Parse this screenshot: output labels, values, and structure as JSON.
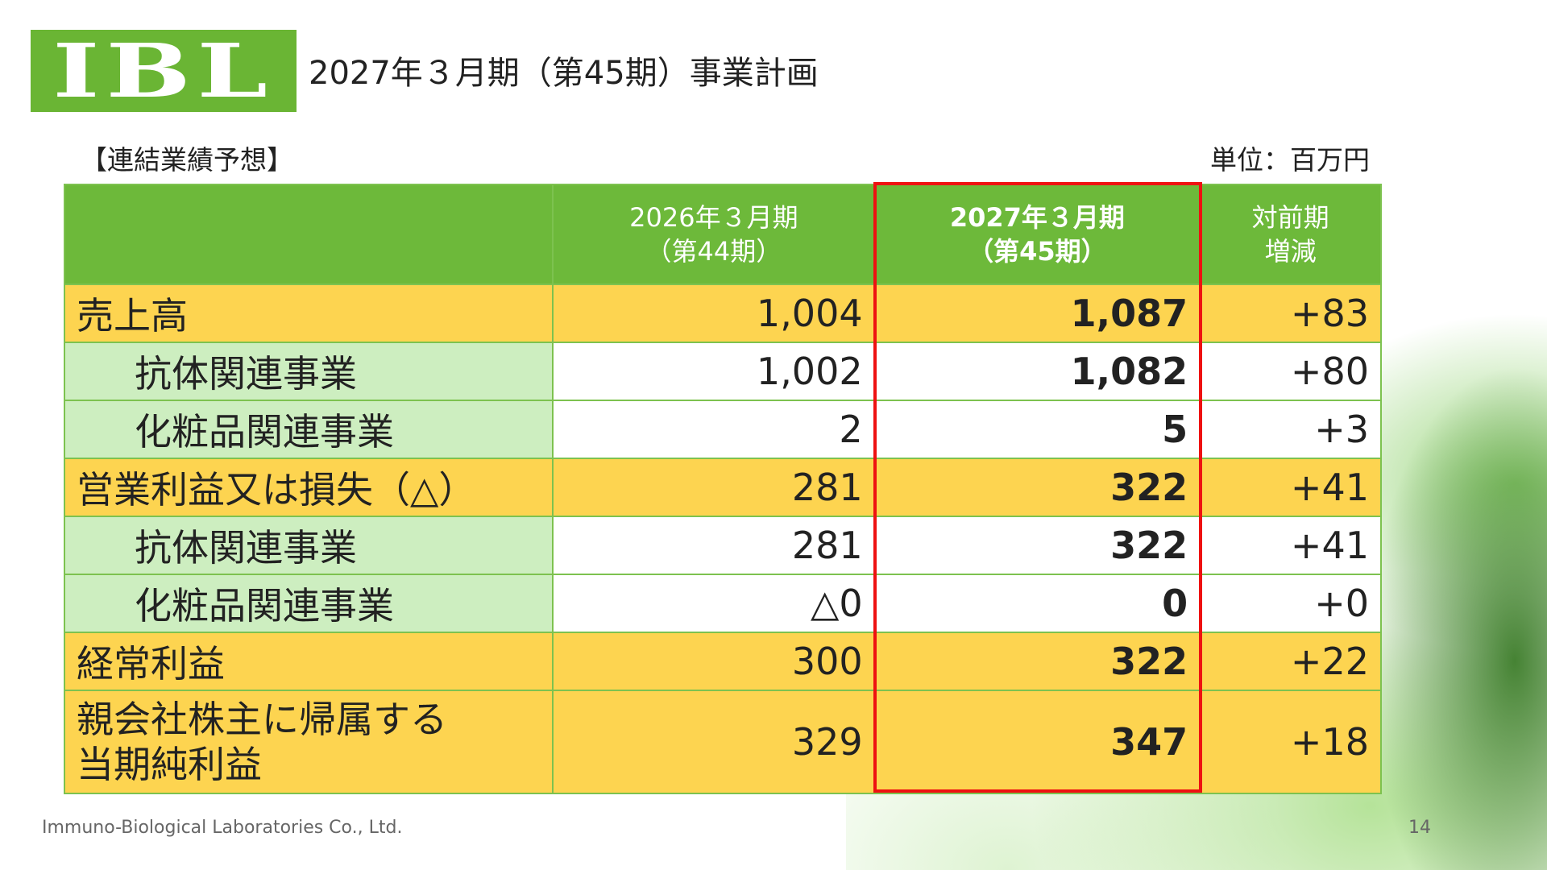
{
  "logo": {
    "text": "IBL",
    "color": "#6ab534"
  },
  "header": {
    "title": "2027年３月期（第45期）事業計画"
  },
  "section": {
    "label": "【連結業績予想】",
    "unit": "単位：百万円"
  },
  "table": {
    "columns": {
      "prev_line1": "2026年３月期",
      "prev_line2": "（第44期）",
      "cur_line1": "2027年３月期",
      "cur_line2": "（第45期）",
      "diff_line1": "対前期",
      "diff_line2": "増減"
    },
    "rows": [
      {
        "label": "売上高",
        "prev": "1,004",
        "cur": "1,087",
        "diff": "+83"
      },
      {
        "label": "抗体関連事業",
        "prev": "1,002",
        "cur": "1,082",
        "diff": "+80"
      },
      {
        "label": "化粧品関連事業",
        "prev": "2",
        "cur": "5",
        "diff": "+3"
      },
      {
        "label": "営業利益又は損失（△）",
        "prev": "281",
        "cur": "322",
        "diff": "+41"
      },
      {
        "label": "抗体関連事業",
        "prev": "281",
        "cur": "322",
        "diff": "+41"
      },
      {
        "label": "化粧品関連事業",
        "prev": "△0",
        "cur": "0",
        "diff": "+0"
      },
      {
        "label": "経常利益",
        "prev": "300",
        "cur": "322",
        "diff": "+22"
      },
      {
        "label_line1": "親会社株主に帰属する",
        "label_line2": "当期純利益",
        "prev": "329",
        "cur": "347",
        "diff": "+18"
      }
    ],
    "colors": {
      "header": "#6db93a",
      "major_row": "#fdd450",
      "sub_label": "#cdeec0",
      "highlight": "#ee1111"
    }
  },
  "footer": {
    "company": "Immuno-Biological Laboratories Co., Ltd.",
    "page": "14"
  }
}
